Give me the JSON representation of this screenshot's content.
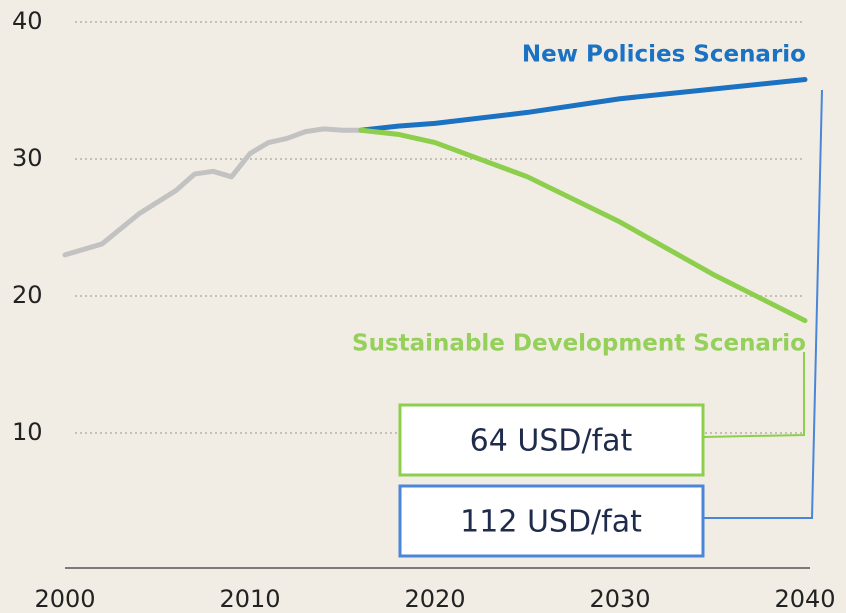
{
  "chart_data": {
    "type": "line",
    "x": [
      2000,
      2002,
      2004,
      2006,
      2007,
      2008,
      2009,
      2010,
      2011,
      2012,
      2013,
      2014,
      2015,
      2016,
      2018,
      2020,
      2025,
      2030,
      2035,
      2040
    ],
    "series": [
      {
        "color": "#c2c2c2",
        "values": [
          23,
          23.8,
          26,
          27.7,
          28.9,
          29.1,
          28.7,
          30.4,
          31.2,
          31.5,
          32,
          32.2,
          32.1,
          32.1,
          null,
          null,
          null,
          null,
          null,
          null
        ]
      },
      {
        "name": "New Policies Scenario",
        "color": "#1b72c2",
        "values": [
          null,
          null,
          null,
          null,
          null,
          null,
          null,
          null,
          null,
          null,
          null,
          null,
          null,
          32.1,
          32.4,
          32.6,
          33.4,
          34.4,
          35.1,
          35.8
        ]
      },
      {
        "name": "Sustainable Development Scenario",
        "color": "#8dcf4c",
        "values": [
          null,
          null,
          null,
          null,
          null,
          null,
          null,
          null,
          null,
          null,
          null,
          null,
          null,
          32.1,
          31.8,
          31.2,
          28.7,
          25.4,
          21.6,
          18.2
        ]
      }
    ],
    "xlim": [
      2000,
      2040
    ],
    "xticks": [
      2000,
      2010,
      2020,
      2030,
      2040
    ],
    "ylim": [
      0,
      40
    ],
    "yticks": [
      10,
      20,
      30,
      40
    ],
    "grid": true,
    "annotations": [
      "64 USD/fat",
      "112 USD/fat"
    ]
  }
}
